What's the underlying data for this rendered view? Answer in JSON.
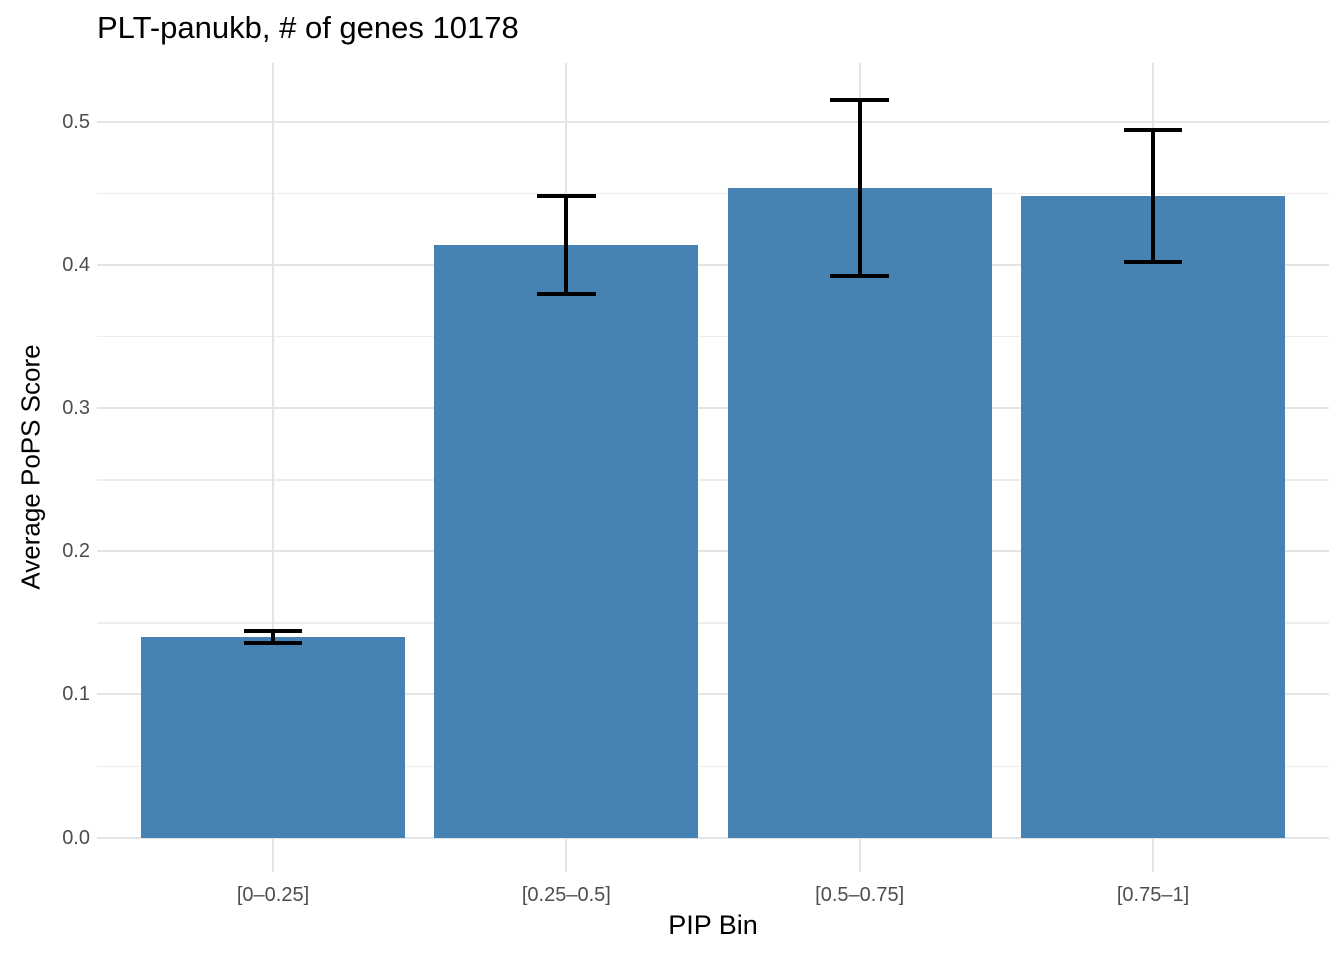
{
  "chart_data": {
    "type": "bar",
    "title": "PLT-panukb, # of genes 10178",
    "xlabel": "PIP Bin",
    "ylabel": "Average PoPS Score",
    "categories": [
      "[0–0.25]",
      "[0.25–0.5]",
      "[0.5–0.75]",
      "[0.75–1]"
    ],
    "values": [
      0.14,
      0.414,
      0.454,
      0.448
    ],
    "error_low": [
      0.136,
      0.38,
      0.392,
      0.402
    ],
    "error_high": [
      0.144,
      0.448,
      0.515,
      0.494
    ],
    "yticks": [
      0.0,
      0.1,
      0.2,
      0.3,
      0.4,
      0.5
    ],
    "ytick_labels": [
      "0.0",
      "0.1",
      "0.2",
      "0.3",
      "0.4",
      "0.5"
    ],
    "minor_yticks": [
      0.05,
      0.15,
      0.25,
      0.35,
      0.45
    ],
    "ylim": [
      -0.024,
      0.541
    ],
    "grid": true,
    "legend": false,
    "bar_width_frac": 0.9,
    "errorbar_cap_frac": 0.2,
    "colors": {
      "bar": "#4682B4",
      "major_grid": "#E4E4E4",
      "minor_grid": "#EDEDED",
      "axis_text": "#4D4D4D",
      "title_text": "#000000",
      "errorbar": "#000000",
      "background": "#FFFFFF"
    }
  }
}
